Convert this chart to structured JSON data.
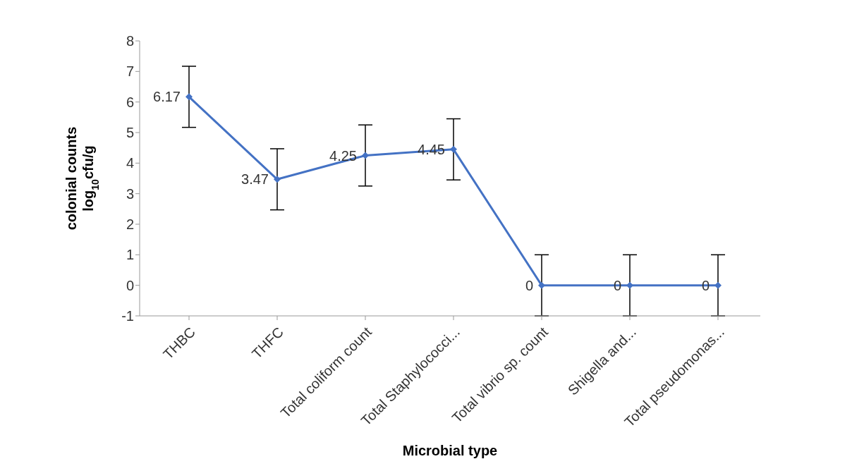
{
  "chart_data": {
    "type": "line",
    "xlabel": "Microbial type",
    "ylabel": "colonial counts\nlog$_{10}$cfu/g",
    "categories": [
      "THBC",
      "THFC",
      "Total coliform count",
      "Total Staphylococci...",
      "Total vibrio sp. count",
      "Shigella and...",
      "Total pseudomonas..."
    ],
    "series": [
      {
        "color": "#4472c4",
        "values": [
          6.17,
          3.47,
          4.25,
          4.45,
          0,
          0,
          0
        ],
        "errors": [
          1,
          1,
          1,
          1,
          1,
          1,
          1
        ]
      }
    ],
    "ylim": [
      -1,
      8
    ],
    "yticks": [
      -1,
      0,
      1,
      2,
      3,
      4,
      5,
      6,
      7,
      8
    ],
    "grid": false,
    "legend": false,
    "marker": "diamond",
    "line_style": "solid",
    "data_labels": true
  }
}
